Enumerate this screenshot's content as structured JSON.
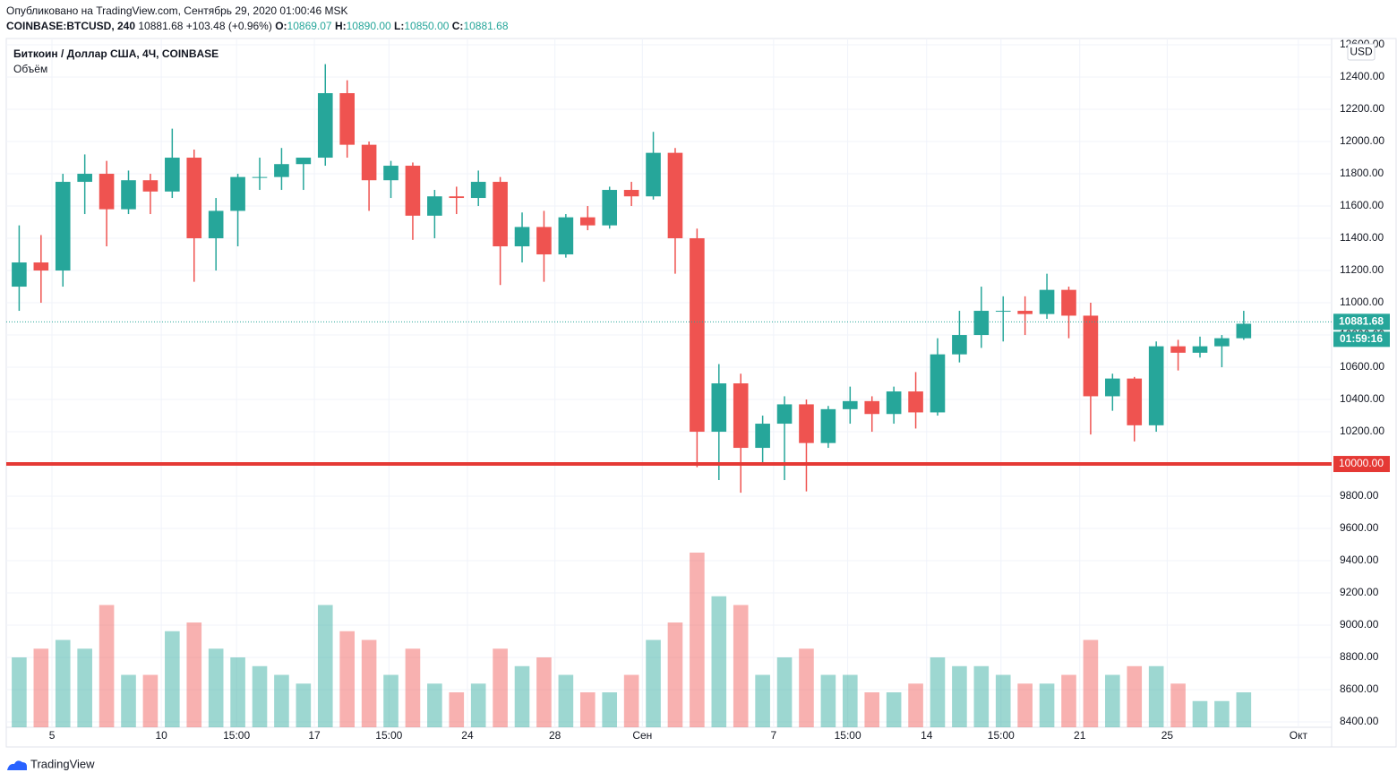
{
  "header": {
    "published": "Опубликовано на TradingView.com, Сентябрь 29, 2020 01:00:46 MSK",
    "symbol": "COINBASE:BTCUSD, 240",
    "last": "10881.68",
    "change": "+103.48 (+0.96%)",
    "ohlc": [
      {
        "label": "O:",
        "value": "10869.07"
      },
      {
        "label": "H:",
        "value": "10890.00"
      },
      {
        "label": "L:",
        "value": "10850.00"
      },
      {
        "label": "C:",
        "value": "10881.68"
      }
    ]
  },
  "chart_data": {
    "type": "candlestick",
    "title": "Биткоин / Доллар США, 4Ч, COINBASE",
    "indicator": "Объём",
    "currency": "USD",
    "x": [
      3.5,
      4.5,
      5.5,
      6.5,
      7.5,
      8.5,
      9.5,
      10.5,
      11.5,
      12.5,
      13.5,
      14.5,
      15.5,
      16.5,
      17.5,
      18.5,
      19.5,
      20.5,
      21.5,
      22.5,
      23.5,
      24.5,
      25.5,
      26.5,
      27.5,
      28.5,
      29.5,
      30.5,
      31.5,
      32.5,
      33.5,
      34.5,
      35.5,
      36.5,
      37.5,
      38.5,
      39.5,
      40.5,
      41.5,
      42.5,
      43.5,
      44.5,
      45.5,
      46.5,
      47.5,
      48.5,
      49.5,
      50.5,
      51.5,
      52.5,
      53.5,
      54.5,
      55.5,
      56.5,
      57.5,
      58.5,
      59.5
    ],
    "open": [
      11100,
      11250,
      11200,
      11750,
      11800,
      11580,
      11760,
      11690,
      11900,
      11400,
      11570,
      11780,
      11780,
      11860,
      11900,
      12300,
      11980,
      11760,
      11850,
      11540,
      11660,
      11650,
      11750,
      11350,
      11470,
      11300,
      11530,
      11480,
      11700,
      11660,
      11930,
      11400,
      10200,
      10500,
      10100,
      10250,
      10370,
      10130,
      10340,
      10390,
      10310,
      10450,
      10320,
      10680,
      10800,
      10950,
      10950,
      10930,
      11080,
      10920,
      10420,
      10530,
      10240,
      10730,
      10690,
      10730,
      10780
    ],
    "high": [
      11480,
      11420,
      11800,
      11920,
      11880,
      11820,
      11800,
      12080,
      11950,
      11650,
      11800,
      11900,
      11960,
      11900,
      12480,
      12380,
      12000,
      11880,
      11870,
      11700,
      11720,
      11820,
      11780,
      11560,
      11570,
      11550,
      11600,
      11720,
      11750,
      12060,
      11960,
      11460,
      10620,
      10560,
      10300,
      10420,
      10400,
      10360,
      10480,
      10420,
      10480,
      10570,
      10780,
      10950,
      11100,
      11040,
      11040,
      11180,
      11100,
      11000,
      10560,
      10540,
      10760,
      10770,
      10790,
      10800,
      10950
    ],
    "low": [
      10950,
      11000,
      11100,
      11550,
      11350,
      11550,
      11550,
      11650,
      11130,
      11200,
      11350,
      11700,
      11700,
      11700,
      11850,
      11900,
      11570,
      11650,
      11390,
      11400,
      11550,
      11600,
      11110,
      11250,
      11130,
      11280,
      11450,
      11460,
      11600,
      11640,
      11180,
      9980,
      9900,
      9822,
      10000,
      9900,
      9830,
      10100,
      10250,
      10200,
      10250,
      10220,
      10300,
      10630,
      10720,
      10760,
      10800,
      10900,
      10780,
      10183,
      10330,
      10140,
      10200,
      10580,
      10660,
      10600,
      10770
    ],
    "close": [
      11250,
      11200,
      11750,
      11800,
      11580,
      11760,
      11690,
      11900,
      11400,
      11570,
      11780,
      11780,
      11860,
      11900,
      12300,
      11980,
      11760,
      11850,
      11540,
      11660,
      11650,
      11750,
      11350,
      11470,
      11300,
      11530,
      11480,
      11700,
      11660,
      11930,
      11400,
      10200,
      10500,
      10100,
      10250,
      10370,
      10130,
      10340,
      10390,
      10310,
      10450,
      10320,
      10680,
      10800,
      10950,
      10950,
      10930,
      11080,
      10920,
      10420,
      10530,
      10240,
      10730,
      10690,
      10730,
      10780,
      10870
    ],
    "volume": [
      40,
      45,
      50,
      45,
      70,
      30,
      30,
      55,
      60,
      45,
      40,
      35,
      30,
      25,
      70,
      55,
      50,
      30,
      45,
      25,
      20,
      25,
      45,
      35,
      40,
      30,
      20,
      20,
      30,
      50,
      60,
      100,
      75,
      70,
      30,
      40,
      45,
      30,
      30,
      20,
      20,
      25,
      40,
      35,
      35,
      30,
      25,
      25,
      30,
      50,
      30,
      35,
      35,
      25,
      15,
      15,
      20
    ],
    "up_color": "#26a69a",
    "down_color": "#ef5350",
    "xlim": [
      2.91,
      63.52
    ],
    "xticks": [
      5,
      10,
      {
        "value": 13.44,
        "label": "15:00"
      },
      17,
      {
        "value": 20.41,
        "label": "15:00"
      },
      24,
      28,
      {
        "value": 32,
        "label": "Сен"
      },
      {
        "value": 38,
        "label": "7"
      },
      {
        "value": 41.39,
        "label": "15:00"
      },
      {
        "value": 45,
        "label": "14"
      },
      {
        "value": 48.4,
        "label": "15:00"
      },
      {
        "value": 52,
        "label": "21"
      },
      {
        "value": 56,
        "label": "25"
      },
      {
        "value": 62,
        "label": "Окт"
      }
    ],
    "ylim": [
      8367,
      12639
    ],
    "yticks": [
      {
        "value": 8400,
        "label": "8400.00"
      },
      {
        "value": 8600,
        "label": "8600.00"
      },
      {
        "value": 8800,
        "label": "8800.00"
      },
      {
        "value": 9000,
        "label": "9000.00"
      },
      {
        "value": 9200,
        "label": "9200.00"
      },
      {
        "value": 9400,
        "label": "9400.00"
      },
      {
        "value": 9600,
        "label": "9600.00"
      },
      {
        "value": 9800,
        "label": "9800.00"
      },
      {
        "value": 10000,
        "label": "10000.00"
      },
      {
        "value": 10200,
        "label": "10200.00"
      },
      {
        "value": 10400,
        "label": "10400.00"
      },
      {
        "value": 10600,
        "label": "10600.00"
      },
      {
        "value": 10800,
        "label": "10800.00"
      },
      {
        "value": 11000,
        "label": "11000.00"
      },
      {
        "value": 11200,
        "label": "11200.00"
      },
      {
        "value": 11400,
        "label": "11400.00"
      },
      {
        "value": 11600,
        "label": "11600.00"
      },
      {
        "value": 11800,
        "label": "11800.00"
      },
      {
        "value": 12000,
        "label": "12000.00"
      },
      {
        "value": 12200,
        "label": "12200.00"
      },
      {
        "value": 12400,
        "label": "12400.00"
      },
      {
        "value": 12600,
        "label": "12600.00"
      }
    ],
    "volume_lim": [
      0,
      100
    ],
    "grid": true,
    "price_line": {
      "value": 10881.68,
      "countdown": "01:59:16"
    },
    "level_line": {
      "value": 10000,
      "label": "10000.00",
      "color": "#e53935"
    }
  },
  "footer": {
    "brand": "TradingView"
  }
}
